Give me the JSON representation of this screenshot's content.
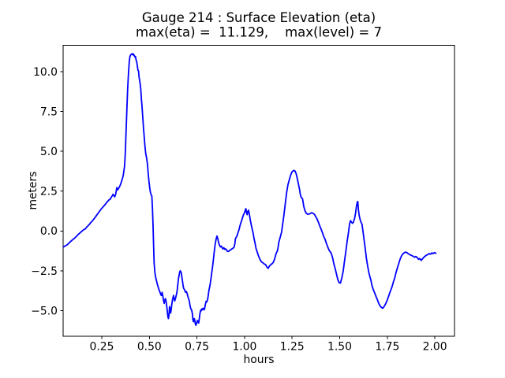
{
  "figure": {
    "background": "#ffffff",
    "axis_color": "#000000"
  },
  "chart_data": {
    "type": "line",
    "title": "Gauge 214 : Surface Elevation (eta)",
    "subtitle": "max(eta) =  11.129,    max(level) = 7",
    "max_eta": 11.129,
    "max_level": 7,
    "xlabel": "hours",
    "ylabel": "meters",
    "line_color": "#0000ff",
    "grid": false,
    "legend_position": "none",
    "xlim": [
      0.047,
      2.103
    ],
    "ylim": [
      -6.62,
      11.65
    ],
    "xticks": {
      "values": [
        0.25,
        0.5,
        0.75,
        1.0,
        1.25,
        1.5,
        1.75,
        2.0
      ],
      "labels": [
        "0.25",
        "0.50",
        "0.75",
        "1.00",
        "1.25",
        "1.50",
        "1.75",
        "2.00"
      ]
    },
    "yticks": {
      "values": [
        10.0,
        7.5,
        5.0,
        2.5,
        0.0,
        -2.5,
        -5.0
      ],
      "labels": [
        "10.0",
        "7.5",
        "5.0",
        "2.5",
        "0.0",
        "−2.5",
        "−5.0"
      ]
    },
    "x": [
      0.05,
      0.07,
      0.09,
      0.11,
      0.13,
      0.145,
      0.155,
      0.163,
      0.171,
      0.178,
      0.185,
      0.19,
      0.2,
      0.213,
      0.224,
      0.233,
      0.245,
      0.256,
      0.267,
      0.278,
      0.288,
      0.295,
      0.3,
      0.305,
      0.309,
      0.314,
      0.318,
      0.323,
      0.329,
      0.334,
      0.34,
      0.348,
      0.355,
      0.36,
      0.363,
      0.366,
      0.369,
      0.371,
      0.374,
      0.377,
      0.38,
      0.383,
      0.386,
      0.389,
      0.392,
      0.395,
      0.398,
      0.402,
      0.406,
      0.41,
      0.414,
      0.417,
      0.421,
      0.424,
      0.427,
      0.431,
      0.434,
      0.437,
      0.44,
      0.443,
      0.446,
      0.449,
      0.452,
      0.455,
      0.458,
      0.461,
      0.465,
      0.469,
      0.473,
      0.477,
      0.481,
      0.486,
      0.49,
      0.494,
      0.498,
      0.502,
      0.506,
      0.51,
      0.513,
      0.516,
      0.519,
      0.522,
      0.525,
      0.529,
      0.533,
      0.537,
      0.542,
      0.547,
      0.551,
      0.556,
      0.56,
      0.564,
      0.567,
      0.571,
      0.575,
      0.578,
      0.582,
      0.585,
      0.589,
      0.593,
      0.597,
      0.6,
      0.603,
      0.606,
      0.609,
      0.612,
      0.615,
      0.618,
      0.621,
      0.624,
      0.627,
      0.63,
      0.633,
      0.637,
      0.64,
      0.644,
      0.647,
      0.65,
      0.653,
      0.656,
      0.659,
      0.662,
      0.665,
      0.668,
      0.671,
      0.674,
      0.677,
      0.68,
      0.683,
      0.687,
      0.69,
      0.694,
      0.698,
      0.702,
      0.706,
      0.71,
      0.714,
      0.718,
      0.722,
      0.726,
      0.729,
      0.732,
      0.735,
      0.738,
      0.741,
      0.744,
      0.747,
      0.75,
      0.753,
      0.756,
      0.759,
      0.762,
      0.765,
      0.768,
      0.771,
      0.774,
      0.777,
      0.78,
      0.783,
      0.787,
      0.79,
      0.794,
      0.798,
      0.802,
      0.806,
      0.81,
      0.813,
      0.817,
      0.82,
      0.824,
      0.828,
      0.832,
      0.836,
      0.84,
      0.845,
      0.85,
      0.855,
      0.859,
      0.863,
      0.868,
      0.873,
      0.878,
      0.882,
      0.886,
      0.891,
      0.895,
      0.9,
      0.905,
      0.91,
      0.916,
      0.922,
      0.928,
      0.934,
      0.94,
      0.945,
      0.949,
      0.952,
      0.955,
      0.959,
      0.963,
      0.967,
      0.971,
      0.975,
      0.979,
      0.984,
      0.989,
      0.994,
      0.999,
      1.004,
      1.007,
      1.011,
      1.014,
      1.018,
      1.021,
      1.025,
      1.03,
      1.035,
      1.04,
      1.045,
      1.05,
      1.055,
      1.06,
      1.066,
      1.072,
      1.078,
      1.084,
      1.09,
      1.097,
      1.104,
      1.11,
      1.117,
      1.124,
      1.131,
      1.138,
      1.145,
      1.152,
      1.159,
      1.164,
      1.168,
      1.172,
      1.176,
      1.18,
      1.185,
      1.19,
      1.195,
      1.2,
      1.207,
      1.214,
      1.221,
      1.228,
      1.235,
      1.242,
      1.249,
      1.256,
      1.261,
      1.266,
      1.271,
      1.277,
      1.284,
      1.289,
      1.293,
      1.297,
      1.301,
      1.305,
      1.311,
      1.318,
      1.325,
      1.332,
      1.339,
      1.346,
      1.353,
      1.36,
      1.367,
      1.374,
      1.381,
      1.388,
      1.395,
      1.402,
      1.409,
      1.416,
      1.423,
      1.43,
      1.437,
      1.444,
      1.451,
      1.456,
      1.46,
      1.464,
      1.47,
      1.477,
      1.484,
      1.49,
      1.497,
      1.504,
      1.511,
      1.518,
      1.525,
      1.532,
      1.539,
      1.546,
      1.552,
      1.557,
      1.562,
      1.567,
      1.572,
      1.578,
      1.583,
      1.588,
      1.592,
      1.595,
      1.598,
      1.602,
      1.607,
      1.612,
      1.617,
      1.622,
      1.628,
      1.634,
      1.64,
      1.646,
      1.652,
      1.658,
      1.664,
      1.67,
      1.677,
      1.684,
      1.691,
      1.698,
      1.705,
      1.712,
      1.719,
      1.726,
      1.733,
      1.74,
      1.747,
      1.754,
      1.761,
      1.768,
      1.775,
      1.782,
      1.789,
      1.796,
      1.803,
      1.81,
      1.817,
      1.824,
      1.831,
      1.838,
      1.845,
      1.852,
      1.859,
      1.866,
      1.873,
      1.88,
      1.887,
      1.894,
      1.9,
      1.907,
      1.914,
      1.921,
      1.928,
      1.935,
      1.942,
      1.949,
      1.956,
      1.963,
      1.97,
      1.977,
      1.984,
      1.991,
      1.998,
      2.005
    ],
    "y": [
      -1.0,
      -0.85,
      -0.62,
      -0.42,
      -0.18,
      -0.02,
      0.08,
      0.12,
      0.25,
      0.33,
      0.41,
      0.5,
      0.62,
      0.82,
      1.0,
      1.15,
      1.35,
      1.5,
      1.65,
      1.82,
      1.95,
      2.0,
      2.12,
      2.2,
      2.3,
      2.22,
      2.14,
      2.3,
      2.72,
      2.58,
      2.7,
      2.9,
      3.15,
      3.35,
      3.5,
      3.75,
      4.0,
      4.3,
      5.0,
      6.0,
      7.0,
      8.0,
      8.9,
      9.6,
      10.2,
      10.7,
      10.95,
      11.05,
      11.1,
      11.13,
      11.05,
      11.1,
      11.0,
      10.92,
      10.95,
      10.7,
      10.6,
      10.35,
      10.1,
      10.05,
      9.65,
      9.45,
      9.2,
      8.9,
      8.3,
      7.9,
      7.2,
      6.5,
      5.9,
      5.3,
      4.85,
      4.55,
      4.2,
      3.6,
      3.1,
      2.7,
      2.4,
      2.25,
      2.2,
      1.5,
      0.5,
      -0.8,
      -2.0,
      -2.6,
      -2.9,
      -3.1,
      -3.35,
      -3.55,
      -3.7,
      -3.85,
      -4.0,
      -4.05,
      -3.85,
      -4.1,
      -4.4,
      -4.55,
      -4.3,
      -4.25,
      -4.5,
      -4.9,
      -5.35,
      -5.5,
      -5.3,
      -4.75,
      -4.9,
      -5.15,
      -4.9,
      -4.6,
      -4.35,
      -4.2,
      -4.05,
      -4.25,
      -4.4,
      -4.25,
      -4.1,
      -3.9,
      -3.65,
      -3.3,
      -3.0,
      -2.8,
      -2.6,
      -2.5,
      -2.55,
      -2.65,
      -2.9,
      -3.15,
      -3.4,
      -3.6,
      -3.65,
      -3.75,
      -3.85,
      -3.8,
      -3.9,
      -4.1,
      -4.25,
      -4.4,
      -4.7,
      -4.9,
      -4.95,
      -5.2,
      -5.6,
      -5.7,
      -5.5,
      -5.55,
      -5.8,
      -5.92,
      -5.85,
      -5.7,
      -5.62,
      -5.72,
      -5.78,
      -5.55,
      -5.25,
      -5.05,
      -4.95,
      -5.0,
      -4.88,
      -4.92,
      -4.85,
      -4.95,
      -4.9,
      -4.62,
      -4.42,
      -4.45,
      -4.3,
      -4.0,
      -3.72,
      -3.5,
      -3.3,
      -2.95,
      -2.6,
      -2.25,
      -1.85,
      -1.4,
      -0.9,
      -0.55,
      -0.32,
      -0.45,
      -0.7,
      -0.88,
      -1.0,
      -0.95,
      -1.05,
      -1.12,
      -1.05,
      -1.15,
      -1.12,
      -1.18,
      -1.28,
      -1.28,
      -1.22,
      -1.18,
      -1.12,
      -1.08,
      -1.02,
      -0.82,
      -0.5,
      -0.42,
      -0.35,
      -0.22,
      -0.05,
      0.08,
      0.28,
      0.45,
      0.62,
      0.82,
      1.0,
      1.12,
      1.3,
      1.4,
      1.12,
      1.02,
      1.25,
      1.3,
      1.08,
      0.7,
      0.4,
      0.12,
      -0.12,
      -0.48,
      -0.75,
      -1.08,
      -1.3,
      -1.52,
      -1.7,
      -1.85,
      -1.95,
      -2.0,
      -2.08,
      -2.1,
      -2.25,
      -2.35,
      -2.2,
      -2.12,
      -2.05,
      -1.95,
      -1.72,
      -1.5,
      -1.35,
      -1.28,
      -1.05,
      -0.72,
      -0.5,
      -0.28,
      -0.05,
      0.4,
      1.0,
      1.7,
      2.4,
      2.9,
      3.2,
      3.5,
      3.7,
      3.78,
      3.8,
      3.75,
      3.6,
      3.3,
      2.9,
      2.6,
      2.3,
      2.12,
      2.08,
      2.0,
      1.55,
      1.25,
      1.1,
      1.05,
      1.06,
      1.1,
      1.15,
      1.1,
      1.05,
      0.9,
      0.75,
      0.55,
      0.32,
      0.12,
      -0.1,
      -0.35,
      -0.52,
      -0.78,
      -1.0,
      -1.2,
      -1.32,
      -1.42,
      -1.58,
      -1.75,
      -2.1,
      -2.4,
      -2.75,
      -3.05,
      -3.25,
      -3.27,
      -2.95,
      -2.55,
      -1.9,
      -1.3,
      -0.65,
      -0.1,
      0.45,
      0.65,
      0.55,
      0.48,
      0.55,
      0.78,
      1.1,
      1.55,
      1.8,
      1.85,
      1.35,
      1.0,
      0.72,
      0.55,
      0.42,
      0.0,
      -0.55,
      -1.1,
      -1.7,
      -2.15,
      -2.55,
      -2.85,
      -3.1,
      -3.45,
      -3.7,
      -3.9,
      -4.12,
      -4.32,
      -4.55,
      -4.7,
      -4.8,
      -4.85,
      -4.75,
      -4.6,
      -4.42,
      -4.2,
      -3.95,
      -3.72,
      -3.5,
      -3.2,
      -2.95,
      -2.6,
      -2.32,
      -2.05,
      -1.78,
      -1.58,
      -1.45,
      -1.38,
      -1.33,
      -1.35,
      -1.42,
      -1.47,
      -1.52,
      -1.55,
      -1.6,
      -1.65,
      -1.6,
      -1.67,
      -1.78,
      -1.73,
      -1.85,
      -1.75,
      -1.65,
      -1.58,
      -1.52,
      -1.48,
      -1.42,
      -1.46,
      -1.38,
      -1.42,
      -1.36,
      -1.4
    ]
  }
}
